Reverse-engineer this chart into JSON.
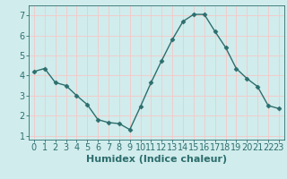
{
  "x": [
    0,
    1,
    2,
    3,
    4,
    5,
    6,
    7,
    8,
    9,
    10,
    11,
    12,
    13,
    14,
    15,
    16,
    17,
    18,
    19,
    20,
    21,
    22,
    23
  ],
  "y": [
    4.2,
    4.35,
    3.65,
    3.5,
    3.0,
    2.55,
    1.8,
    1.65,
    1.6,
    1.3,
    2.45,
    3.65,
    4.75,
    5.8,
    6.7,
    7.05,
    7.05,
    6.2,
    5.4,
    4.35,
    3.85,
    3.45,
    2.5,
    2.35
  ],
  "line_color": "#2d6e6e",
  "marker": "D",
  "marker_size": 2.5,
  "line_width": 1.0,
  "bg_color": "#d1ecec",
  "grid_color": "#f5c8c8",
  "xlabel": "Humidex (Indice chaleur)",
  "xlabel_fontsize": 8,
  "xlabel_fontweight": "bold",
  "xlim": [
    -0.5,
    23.5
  ],
  "ylim": [
    0.8,
    7.5
  ],
  "yticks": [
    1,
    2,
    3,
    4,
    5,
    6,
    7
  ],
  "xticks": [
    0,
    1,
    2,
    3,
    4,
    5,
    6,
    7,
    8,
    9,
    10,
    11,
    12,
    13,
    14,
    15,
    16,
    17,
    18,
    19,
    20,
    21,
    22,
    23
  ],
  "tick_fontsize": 7,
  "tick_color": "#2d6e6e"
}
